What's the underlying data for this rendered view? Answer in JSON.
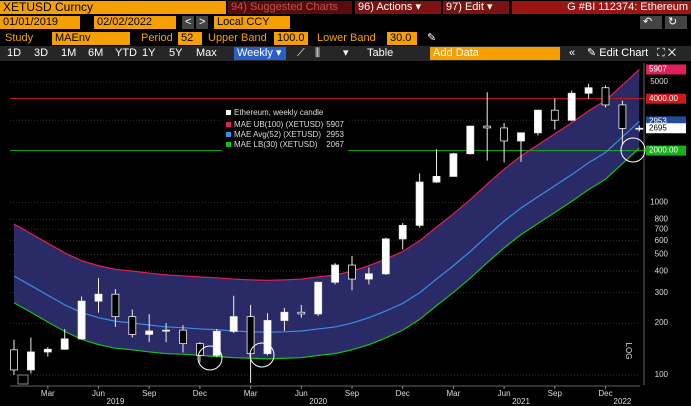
{
  "toolbar": {
    "ticker": "XETUSD Curncy",
    "suggested": "94) Suggested Charts",
    "actions": "96) Actions ▾",
    "edit": "97) Edit ▾",
    "title": "G #BI 112374: Ethereum"
  },
  "range": {
    "start": "01/01/2019",
    "end": "02/02/2022",
    "currency": "Local CCY"
  },
  "study": {
    "label": "Study",
    "name": "MAEnv",
    "period_label": "Period",
    "period": 52,
    "upper_label": "Upper Band",
    "upper": "100.0",
    "lower_label": "Lower Band",
    "lower": "30.0"
  },
  "tabs": [
    "1D",
    "3D",
    "1M",
    "6M",
    "YTD",
    "1Y",
    "5Y",
    "Max"
  ],
  "interval": "Weekly ▾",
  "table": "Table",
  "add_data": "Add Data",
  "edit_chart": "Edit Chart",
  "chart_data": {
    "type": "candlestick",
    "candle_name": "Ethereum, weekly candle",
    "x": [
      "2019-01",
      "2019-02",
      "2019-03",
      "2019-04",
      "2019-05",
      "2019-06",
      "2019-07",
      "2019-08",
      "2019-09",
      "2019-10",
      "2019-11",
      "2019-12",
      "2020-01",
      "2020-02",
      "2020-03",
      "2020-04",
      "2020-05",
      "2020-06",
      "2020-07",
      "2020-08",
      "2020-09",
      "2020-10",
      "2020-11",
      "2020-12",
      "2021-01",
      "2021-02",
      "2021-03",
      "2021-04",
      "2021-05",
      "2021-06",
      "2021-07",
      "2021-08",
      "2021-09",
      "2021-10",
      "2021-11",
      "2021-12",
      "2022-01",
      "2022-02"
    ],
    "open": [
      140,
      107,
      136,
      141,
      162,
      268,
      294,
      218,
      172,
      180,
      182,
      152,
      130,
      179,
      218,
      133,
      207,
      231,
      226,
      345,
      434,
      360,
      386,
      615,
      737,
      1314,
      1417,
      1918,
      2773,
      2707,
      2275,
      2536,
      3430,
      3000,
      4300,
      4630,
      3680,
      2690
    ],
    "high": [
      160,
      165,
      145,
      185,
      285,
      365,
      315,
      240,
      225,
      200,
      195,
      155,
      185,
      288,
      255,
      228,
      245,
      255,
      345,
      445,
      490,
      420,
      625,
      760,
      1475,
      2040,
      1940,
      2790,
      4360,
      2890,
      2550,
      3460,
      4020,
      4460,
      4890,
      4780,
      3900,
      2800
    ],
    "low": [
      100,
      102,
      128,
      140,
      160,
      230,
      190,
      165,
      155,
      155,
      135,
      118,
      127,
      175,
      90,
      130,
      180,
      215,
      220,
      335,
      310,
      335,
      380,
      535,
      715,
      1300,
      1430,
      1900,
      1750,
      1710,
      1720,
      2450,
      2650,
      2960,
      4000,
      3560,
      2160,
      2580
    ],
    "close": [
      107,
      136,
      141,
      162,
      268,
      294,
      218,
      172,
      180,
      182,
      152,
      130,
      179,
      218,
      133,
      207,
      231,
      226,
      345,
      434,
      360,
      386,
      615,
      737,
      1314,
      1417,
      1918,
      2773,
      2707,
      2275,
      2536,
      3430,
      3000,
      4300,
      4630,
      3680,
      2690,
      2695
    ],
    "series": [
      {
        "name": "MAE UB(100) (XETUSD)",
        "color": "#e0205a",
        "values": [
          750,
          660,
          580,
          510,
          460,
          430,
          410,
          400,
          390,
          380,
          376,
          370,
          366,
          360,
          356,
          354,
          356,
          360,
          370,
          380,
          400,
          430,
          470,
          520,
          600,
          720,
          860,
          1040,
          1280,
          1560,
          1860,
          2160,
          2500,
          2900,
          3400,
          3900,
          4800,
          5907
        ]
      },
      {
        "name": "MAE Avg(52) (XETUSD)",
        "color": "#3a8ee8",
        "values": [
          375,
          330,
          290,
          255,
          230,
          215,
          205,
          200,
          195,
          190,
          188,
          185,
          183,
          180,
          178,
          177,
          178,
          180,
          185,
          190,
          200,
          215,
          235,
          260,
          300,
          360,
          430,
          520,
          640,
          780,
          930,
          1080,
          1250,
          1450,
          1700,
          1950,
          2400,
          2953
        ]
      },
      {
        "name": "MAE LB(30) (XETUSD)",
        "color": "#18c018",
        "values": [
          262,
          231,
          203,
          179,
          161,
          150,
          143,
          140,
          136,
          133,
          132,
          130,
          128,
          126,
          125,
          124,
          125,
          126,
          130,
          133,
          140,
          150,
          164,
          182,
          210,
          252,
          301,
          364,
          448,
          546,
          651,
          756,
          875,
          1015,
          1190,
          1365,
          1680,
          2067
        ]
      }
    ],
    "band_fill": "#2a2a66",
    "hlines": [
      {
        "value": 4000,
        "label": "4000.00",
        "color": "#cc1a1a"
      },
      {
        "value": 2000,
        "label": "2000.00",
        "color": "#18b018"
      }
    ],
    "ylim": [
      87.5,
      6440
    ],
    "log_scale": true,
    "yticks": [
      100,
      200,
      300,
      400,
      500,
      600,
      700,
      800,
      1000,
      3000,
      5000
    ],
    "y_axis_label": "LOG",
    "xticks": [
      {
        "value": "2019-03",
        "label": "Mar"
      },
      {
        "value": "2019-06",
        "label": "Jun"
      },
      {
        "value": "2019-09",
        "label": "Sep"
      },
      {
        "value": "2019-12",
        "label": "Dec"
      },
      {
        "value": "2020-03",
        "label": "Mar"
      },
      {
        "value": "2020-06",
        "label": "Jun"
      },
      {
        "value": "2020-09",
        "label": "Sep"
      },
      {
        "value": "2020-12",
        "label": "Dec"
      },
      {
        "value": "2021-03",
        "label": "Mar"
      },
      {
        "value": "2021-06",
        "label": "Jun"
      },
      {
        "value": "2021-09",
        "label": "Sep"
      },
      {
        "value": "2021-12",
        "label": "Dec"
      }
    ],
    "years": [
      {
        "value": "2019-07",
        "label": "2019"
      },
      {
        "value": "2020-07",
        "label": "2020"
      },
      {
        "value": "2021-07",
        "label": "2021"
      },
      {
        "value": "2022-01",
        "label": "2022"
      }
    ]
  }
}
